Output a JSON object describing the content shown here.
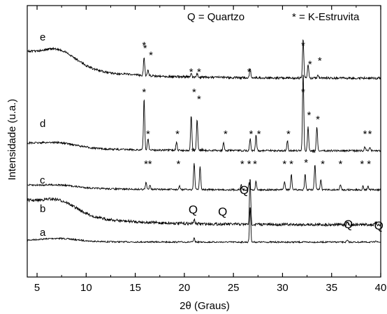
{
  "chart_data": {
    "type": "line",
    "xlabel": "2θ (Graus)",
    "ylabel": "Intensidade (u.a.)",
    "xlim": [
      4,
      40
    ],
    "x_ticks": [
      5,
      10,
      15,
      20,
      25,
      30,
      35,
      40
    ],
    "y_ticks_visible": false,
    "grid": false,
    "legend": [
      {
        "symbol": "Q",
        "text": "Q = Quartzo"
      },
      {
        "symbol": "*",
        "text": "* = K-Estruvita"
      }
    ],
    "series": [
      {
        "name": "a",
        "peaks": [
          [
            21.0,
            0.1
          ],
          [
            26.7,
            1.0
          ],
          [
            36.6,
            0.05
          ],
          [
            39.5,
            0.05
          ]
        ],
        "markers": []
      },
      {
        "name": "b",
        "peaks": [
          [
            21.0,
            0.1
          ],
          [
            26.7,
            1.0
          ],
          [
            36.6,
            0.05
          ],
          [
            39.5,
            0.05
          ]
        ],
        "markers": [
          {
            "symbol": "Q",
            "x": 20.9
          },
          {
            "symbol": "Q",
            "x": 23.9
          },
          {
            "symbol": "Q",
            "x": 26.1
          },
          {
            "symbol": "Q",
            "x": 36.7
          },
          {
            "symbol": "Q",
            "x": 39.8
          }
        ]
      },
      {
        "name": "c",
        "peaks": [
          [
            16.1,
            0.2
          ],
          [
            16.5,
            0.15
          ],
          [
            19.5,
            0.1
          ],
          [
            21.0,
            0.8
          ],
          [
            21.6,
            0.7
          ],
          [
            25.8,
            0.15
          ],
          [
            26.6,
            0.2
          ],
          [
            27.3,
            0.25
          ],
          [
            30.2,
            0.25
          ],
          [
            30.9,
            0.45
          ],
          [
            32.3,
            0.45
          ],
          [
            33.3,
            0.75
          ],
          [
            33.9,
            0.3
          ],
          [
            35.9,
            0.15
          ],
          [
            38.2,
            0.1
          ],
          [
            38.7,
            0.1
          ]
        ],
        "markers": [
          16.1,
          16.5,
          19.4,
          20.9,
          21.8,
          25.9,
          26.6,
          27.2,
          30.2,
          30.9,
          32.4,
          33.2,
          34.1,
          35.9,
          38.1,
          38.8
        ]
      },
      {
        "name": "d",
        "peaks": [
          [
            15.9,
            0.65
          ],
          [
            16.3,
            0.15
          ],
          [
            19.2,
            0.1
          ],
          [
            20.7,
            0.45
          ],
          [
            21.3,
            0.4
          ],
          [
            24.0,
            0.1
          ],
          [
            26.7,
            0.15
          ],
          [
            27.3,
            0.2
          ],
          [
            30.5,
            0.12
          ],
          [
            32.1,
            1.0
          ],
          [
            32.6,
            0.3
          ],
          [
            33.5,
            0.3
          ],
          [
            38.4,
            0.05
          ],
          [
            38.9,
            0.05
          ]
        ],
        "markers": [
          15.9,
          16.3,
          19.3,
          21.0,
          21.5,
          24.2,
          26.8,
          27.6,
          30.6,
          32.1,
          32.7,
          33.6,
          38.4,
          38.9
        ]
      },
      {
        "name": "e",
        "peaks": [
          [
            15.9,
            0.28
          ],
          [
            16.3,
            0.08
          ],
          [
            20.7,
            0.05
          ],
          [
            21.3,
            0.05
          ],
          [
            26.7,
            0.15
          ],
          [
            32.1,
            0.6
          ],
          [
            32.6,
            0.2
          ],
          [
            33.6,
            0.05
          ]
        ],
        "markers": [
          15.9,
          16.0,
          16.6,
          20.7,
          21.5,
          26.6,
          32.1,
          32.8,
          33.8
        ]
      }
    ]
  }
}
